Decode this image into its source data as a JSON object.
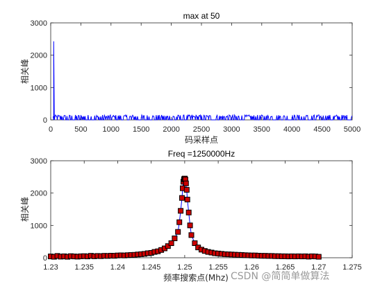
{
  "chart_data": [
    {
      "type": "line",
      "title": "max at 50",
      "xlabel": "码采样点",
      "ylabel": "相关峰",
      "xlim": [
        0,
        5000
      ],
      "ylim": [
        0,
        3000
      ],
      "xticks": [
        "0",
        "500",
        "1000",
        "1500",
        "2000",
        "2500",
        "3000",
        "3500",
        "4000",
        "4500",
        "5000"
      ],
      "yticks": [
        "0",
        "1000",
        "2000",
        "3000"
      ],
      "peak": {
        "x": 50,
        "y": 2430
      },
      "noise_floor_max": 150,
      "color": "#0000ff",
      "grid": false
    },
    {
      "type": "line",
      "title": "Freq =1250000Hz",
      "xlabel": "频率搜索点(Mhz)",
      "ylabel": "相关峰",
      "xlim": [
        1.23,
        1.275
      ],
      "ylim": [
        0,
        3000
      ],
      "xticks": [
        "1.23",
        "1.235",
        "1.24",
        "1.245",
        "1.25",
        "1.255",
        "1.26",
        "1.265",
        "1.27",
        "1.275"
      ],
      "yticks": [
        "0",
        "1000",
        "2000",
        "3000"
      ],
      "marker": "square",
      "marker_color": "#cc0000",
      "line_color": "#0000ff",
      "grid": false,
      "series": [
        {
          "x": [
            1.23,
            1.2305,
            1.231,
            1.2315,
            1.232,
            1.2325,
            1.233,
            1.2335,
            1.234,
            1.2345,
            1.235,
            1.2355,
            1.236,
            1.2365,
            1.237,
            1.2375,
            1.238,
            1.2385,
            1.239,
            1.2395,
            1.24,
            1.2405,
            1.241,
            1.2415,
            1.242,
            1.2425,
            1.243,
            1.2435,
            1.244,
            1.2445,
            1.245,
            1.2455,
            1.246,
            1.2465,
            1.247,
            1.2475,
            1.248,
            1.2485,
            1.249,
            1.2492,
            1.2494,
            1.2496,
            1.2497,
            1.2498,
            1.2499,
            1.25,
            1.2501,
            1.2502,
            1.2503,
            1.2504,
            1.2506,
            1.2508,
            1.251,
            1.2515,
            1.252,
            1.2525,
            1.253,
            1.2535,
            1.254,
            1.2545,
            1.255,
            1.2555,
            1.256,
            1.2565,
            1.257,
            1.2575,
            1.258,
            1.2585,
            1.259,
            1.2595,
            1.26,
            1.2605,
            1.261,
            1.2615,
            1.262,
            1.2625,
            1.263,
            1.2635,
            1.264,
            1.2645,
            1.265,
            1.2655,
            1.266,
            1.2665,
            1.267,
            1.2675,
            1.268,
            1.2685,
            1.269,
            1.2695,
            1.27
          ],
          "y": [
            40,
            30,
            55,
            35,
            45,
            30,
            50,
            40,
            35,
            45,
            50,
            40,
            60,
            45,
            55,
            50,
            60,
            55,
            65,
            60,
            70,
            75,
            70,
            80,
            85,
            90,
            100,
            110,
            120,
            140,
            150,
            180,
            200,
            240,
            290,
            360,
            450,
            600,
            800,
            1100,
            1450,
            1850,
            2150,
            2350,
            2430,
            2450,
            2420,
            2300,
            2100,
            1800,
            1400,
            1000,
            700,
            450,
            320,
            250,
            210,
            180,
            160,
            140,
            130,
            120,
            110,
            105,
            100,
            95,
            90,
            85,
            80,
            75,
            70,
            70,
            65,
            60,
            60,
            55,
            55,
            50,
            50,
            45,
            45,
            40,
            45,
            40,
            45,
            40,
            45,
            35,
            45,
            40,
            30
          ]
        }
      ]
    }
  ],
  "watermark": "CSDN @简简单做算法"
}
